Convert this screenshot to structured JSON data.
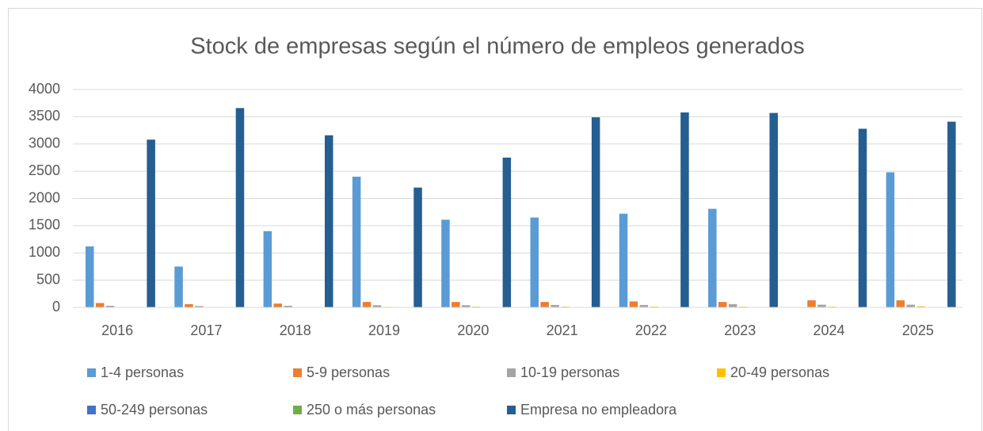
{
  "chart_data": {
    "type": "bar",
    "title": "Stock de empresas según el número de empleos generados",
    "categories": [
      "2016",
      "2017",
      "2018",
      "2019",
      "2020",
      "2021",
      "2022",
      "2023",
      "2024",
      "2025"
    ],
    "series": [
      {
        "name": "1-4 personas",
        "color": "#5b9bd5",
        "values": [
          1120,
          750,
          1400,
          2400,
          1610,
          1650,
          1720,
          1810,
          0,
          2480
        ]
      },
      {
        "name": "5-9 personas",
        "color": "#ed7d31",
        "values": [
          80,
          60,
          70,
          100,
          100,
          100,
          110,
          100,
          130,
          130
        ]
      },
      {
        "name": "10-19 personas",
        "color": "#a5a5a5",
        "values": [
          30,
          25,
          30,
          40,
          40,
          45,
          45,
          60,
          50,
          50
        ]
      },
      {
        "name": "20-49 personas",
        "color": "#ffc000",
        "values": [
          5,
          5,
          5,
          10,
          15,
          15,
          15,
          15,
          15,
          20
        ]
      },
      {
        "name": "50-249 personas",
        "color": "#4472c4",
        "values": [
          2,
          2,
          2,
          2,
          2,
          2,
          2,
          2,
          2,
          2
        ]
      },
      {
        "name": "250 o más personas",
        "color": "#70ad47",
        "values": [
          1,
          1,
          1,
          1,
          1,
          1,
          1,
          1,
          1,
          1
        ]
      },
      {
        "name": "Empresa no empleadora",
        "color": "#255e91",
        "values": [
          3080,
          3660,
          3160,
          2200,
          2750,
          3490,
          3580,
          3570,
          3280,
          3410
        ]
      }
    ],
    "ylim": [
      0,
      4000
    ],
    "yticks": [
      0,
      500,
      1000,
      1500,
      2000,
      2500,
      3000,
      3500,
      4000
    ],
    "grid": true,
    "legend": "bottom"
  }
}
